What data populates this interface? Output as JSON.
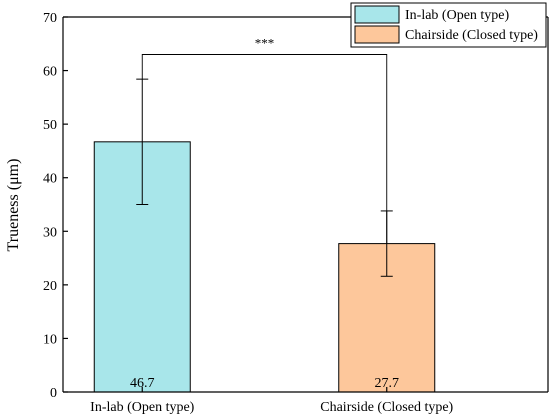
{
  "chart_data": {
    "type": "bar",
    "title": "",
    "xlabel": "",
    "ylabel": "Trueness (μm)",
    "ylim": [
      0,
      70
    ],
    "yticks": [
      "0",
      "10",
      "20",
      "30",
      "40",
      "50",
      "60",
      "70"
    ],
    "categories": [
      "In-lab (Open type)",
      "Chairside (Closed type)"
    ],
    "series": [
      {
        "name": "",
        "values": [
          46.7,
          27.7
        ],
        "errors": [
          11.7,
          6.1
        ],
        "value_labels": [
          "46.7",
          "27.7"
        ],
        "colors": [
          "#a8e6ea",
          "#fdc79b"
        ]
      }
    ],
    "legend": {
      "placement": "top-right",
      "entries": [
        {
          "label": "In-lab (Open type)",
          "color": "#a8e6ea"
        },
        {
          "label": "Chairside (Closed type)",
          "color": "#fdc79b"
        }
      ]
    },
    "significance": {
      "label": "***",
      "between": [
        0,
        1
      ],
      "y": 63
    },
    "grid": false
  }
}
